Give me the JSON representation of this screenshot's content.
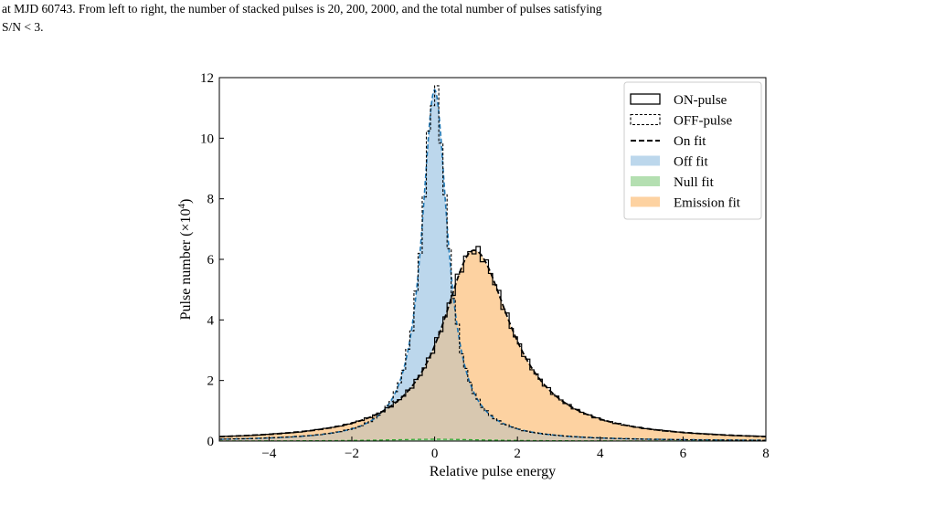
{
  "caption": {
    "line1": "at MJD 60743.  From left to right, the number of stacked pulses is 20, 200, 2000, and the total number of pulses satisfying",
    "line2": "S/N < 3."
  },
  "chart_data": {
    "type": "histogram",
    "xlabel": "Relative pulse energy",
    "ylabel": "Pulse number (×10⁴)",
    "ylabel_plain": "Pulse number (",
    "ylabel_mult": "×10",
    "ylabel_exp": "4",
    "ylabel_close": ")",
    "xlim": [
      -5.2,
      8
    ],
    "ylim": [
      0,
      12
    ],
    "xticks": [
      -4,
      -2,
      0,
      2,
      4,
      6,
      8
    ],
    "xtick_labels": [
      "−4",
      "−2",
      "0",
      "2",
      "4",
      "6",
      "8"
    ],
    "yticks": [
      0,
      2,
      4,
      6,
      8,
      10,
      12
    ],
    "ytick_labels": [
      "0",
      "2",
      "4",
      "6",
      "8",
      "10",
      "12"
    ],
    "legend_position": "top-right",
    "legend": [
      {
        "label": "ON-pulse",
        "kind": "box-solid"
      },
      {
        "label": "OFF-pulse",
        "kind": "box-dashed"
      },
      {
        "label": "On fit",
        "kind": "dashed-line"
      },
      {
        "label": "Off fit",
        "kind": "fill",
        "color": "#bcd7ec"
      },
      {
        "label": "Null fit",
        "kind": "fill",
        "color": "#b4dfb1"
      },
      {
        "label": "Emission fit",
        "kind": "fill",
        "color": "#fdd2a1"
      }
    ],
    "models": {
      "off": {
        "x0": 0.0,
        "peak": 11.6,
        "gamma": 0.38,
        "color": "#1f77b4"
      },
      "emission": {
        "x0": 0.95,
        "peak": 6.3,
        "gamma_left": 0.95,
        "gamma_right": 1.1
      },
      "null": {
        "x0": 0.0,
        "peak": 0.06,
        "gamma": 1.5
      }
    },
    "colors": {
      "off_fill": "#bcd7ec",
      "emission_fill": "#fdd2a1",
      "overlap_fill": "#d8c8b0",
      "null_fill": "#b4dfb1",
      "off_fit_line": "#1f77b4",
      "null_fit_line": "#2ca02c"
    }
  }
}
